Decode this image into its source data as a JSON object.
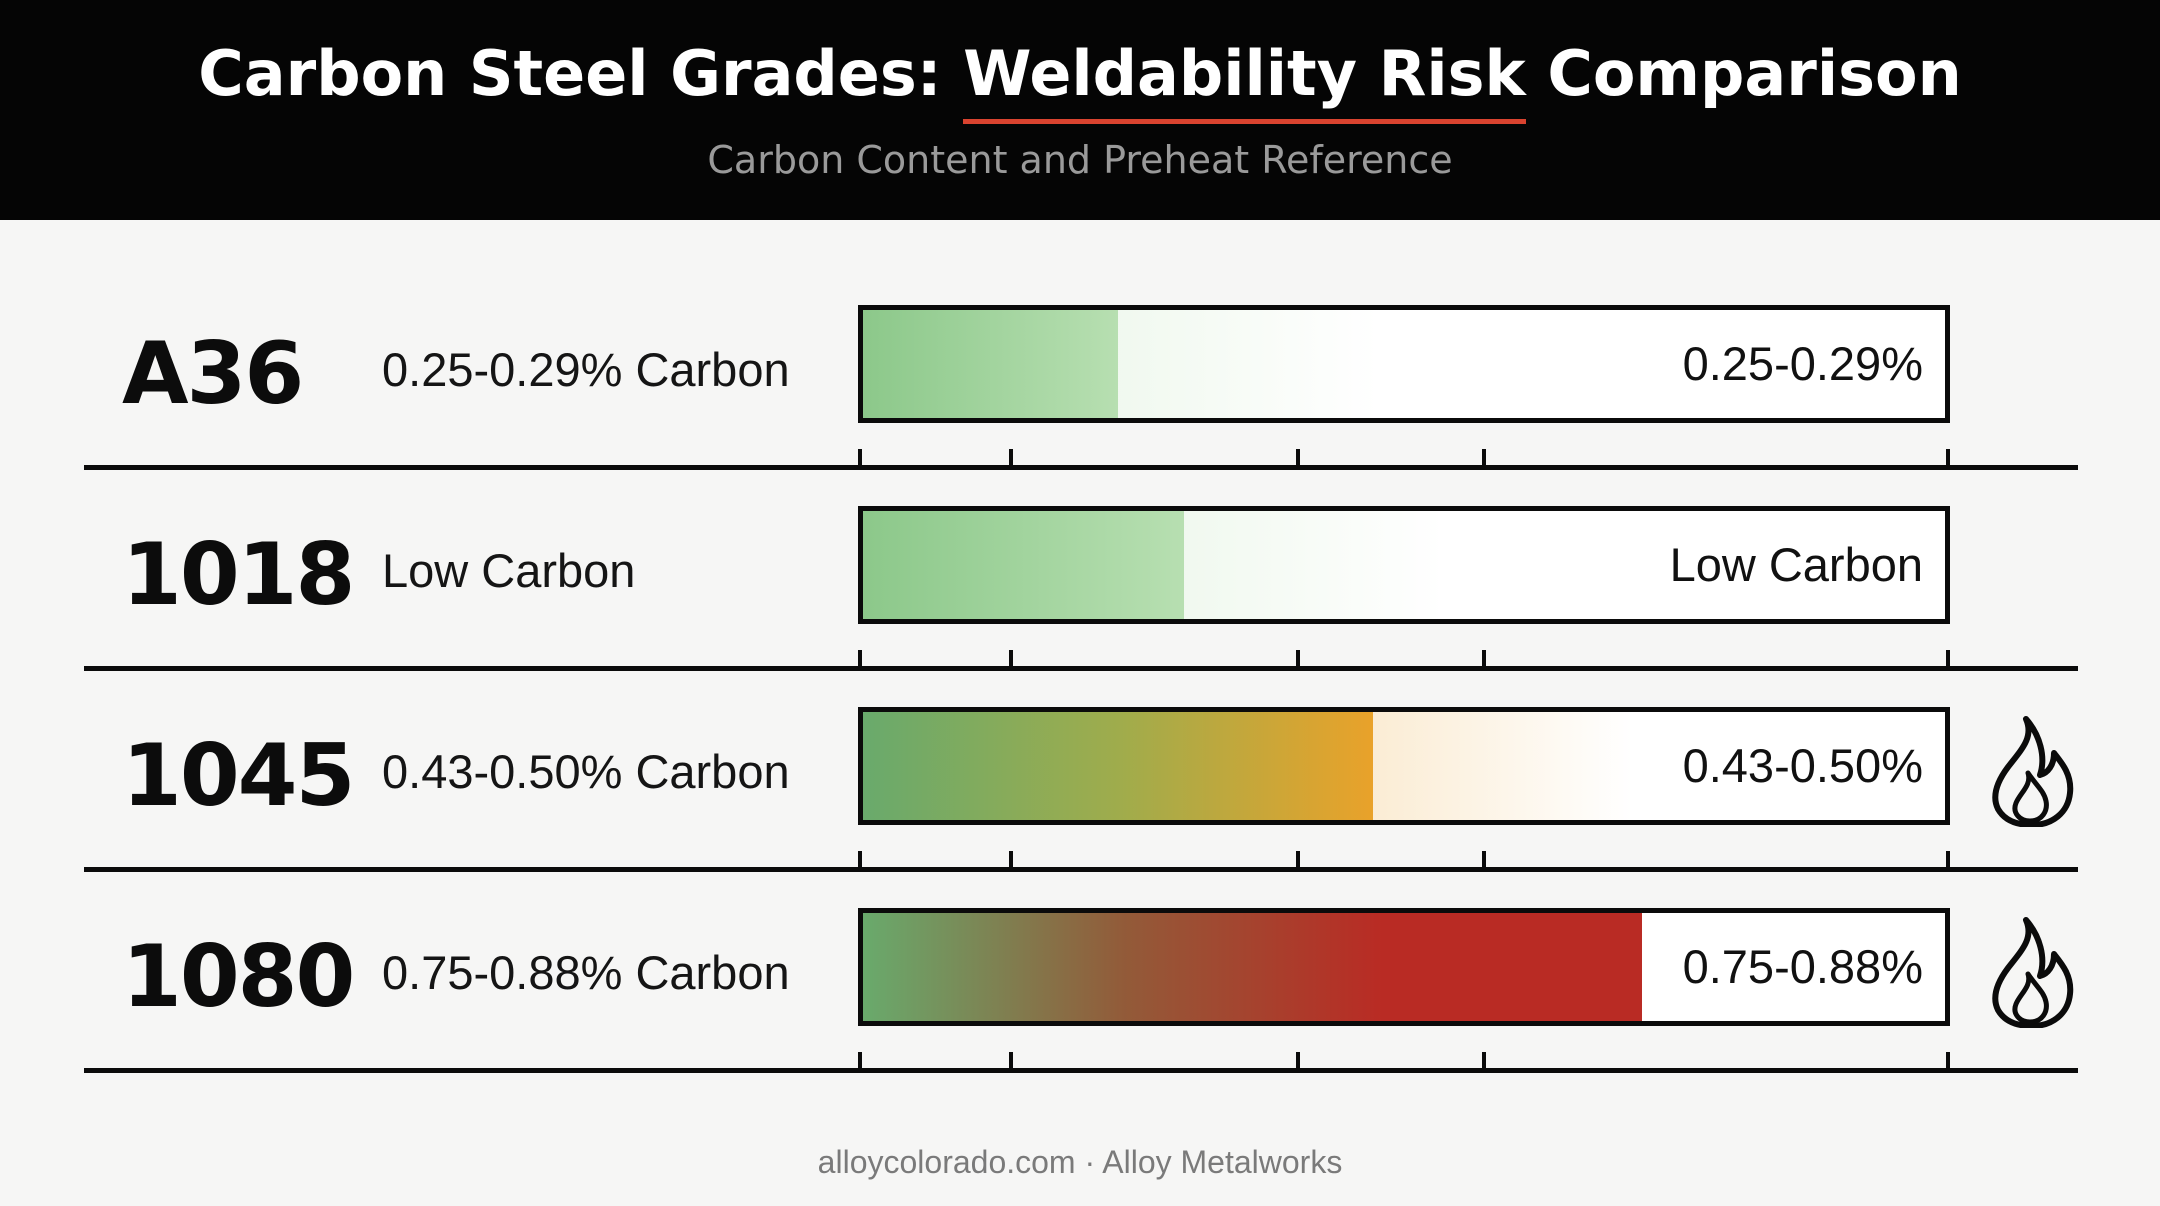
{
  "header": {
    "title_prefix": "Carbon Steel Grades: ",
    "title_accent": "Weldability Risk",
    "title_suffix": " Comparison",
    "subtitle": "Carbon Content and Preheat Reference"
  },
  "colors": {
    "header_background": "#050505",
    "accent": "#d9432f",
    "low_risk": "#8cc88a",
    "medium_risk": "#e9a22a",
    "high_risk": "#b92b24"
  },
  "chart_data": {
    "type": "bar",
    "title": "Carbon Steel Grades: Weldability Risk Comparison",
    "subtitle": "Carbon Content and Preheat Reference",
    "categories": [
      "A36",
      "1018",
      "1045",
      "1080"
    ],
    "series": [
      {
        "values": [
          0.236,
          0.297,
          0.471,
          0.72
        ]
      }
    ],
    "rows": [
      {
        "grade": "A36",
        "description": "0.25-0.29% Carbon",
        "bar_label": "0.25-0.29%",
        "fill_fraction": 0.236,
        "gradient": [
          "#8cc88a",
          "#b7dfb1"
        ],
        "flame_icon": false
      },
      {
        "grade": "1018",
        "description": "Low Carbon",
        "bar_label": "Low Carbon",
        "fill_fraction": 0.297,
        "gradient": [
          "#8cc88a",
          "#b7dfb1"
        ],
        "flame_icon": false
      },
      {
        "grade": "1045",
        "description": "0.43-0.50% Carbon",
        "bar_label": "0.43-0.50%",
        "fill_fraction": 0.471,
        "gradient": [
          "#69aa6c",
          "#9fac4c",
          "#e9a22a"
        ],
        "flame_icon": true
      },
      {
        "grade": "1080",
        "description": "0.75-0.88% Carbon",
        "bar_label": "0.75-0.88%",
        "fill_fraction": 0.72,
        "gradient": [
          "#69aa6c",
          "#925b39",
          "#b92b24",
          "#b92b24"
        ],
        "flame_icon": true
      }
    ],
    "ylim": [
      0,
      1
    ],
    "grid": false,
    "legend": "none"
  },
  "footer": {
    "text": "alloycolorado.com · Alloy Metalworks"
  },
  "icons": [
    "flame-icon"
  ]
}
